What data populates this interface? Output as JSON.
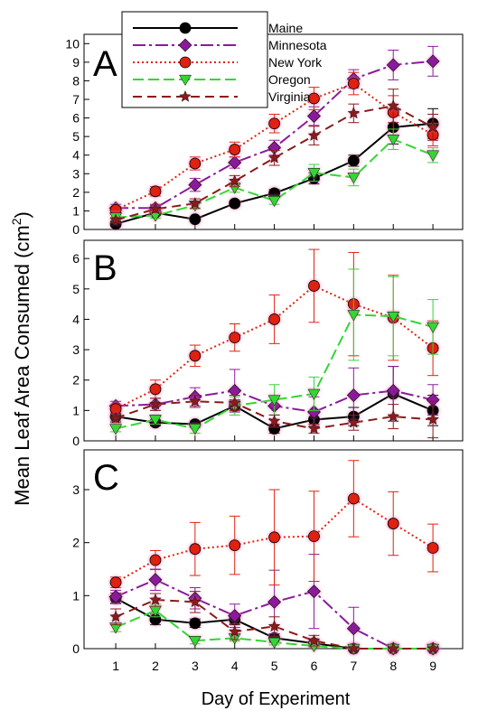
{
  "chart_data": {
    "type": "line",
    "xlabel": "Day of Experiment",
    "ylabel_main": "Mean Leaf Area Consumed (cm",
    "ylabel_sup": "2",
    "ylabel_close": ")",
    "x": [
      1,
      2,
      3,
      4,
      5,
      6,
      7,
      8,
      9
    ],
    "legend": {
      "placement": "top-left",
      "entries": [
        "Maine",
        "Minnesota",
        "New York",
        "Oregon",
        "Virginia"
      ]
    },
    "series_styles": [
      {
        "color": "#000000",
        "dash": "",
        "marker": "circle"
      },
      {
        "color": "#8b1a9b",
        "dash": "14,4,3,4",
        "marker": "diamond"
      },
      {
        "color": "#e02010",
        "dash": "2,3",
        "marker": "circle"
      },
      {
        "color": "#33d633",
        "dash": "12,5",
        "marker": "triangle-down"
      },
      {
        "color": "#8b1a1a",
        "dash": "10,6",
        "marker": "star"
      }
    ],
    "marker_color": "#e02010",
    "panels": [
      {
        "label": "A",
        "ylim": [
          0,
          10.5
        ],
        "yticks": [
          0,
          1,
          2,
          3,
          4,
          5,
          6,
          7,
          8,
          9,
          10
        ],
        "series": [
          {
            "name": "Maine",
            "values": [
              0.3,
              0.9,
              0.55,
              1.4,
              1.95,
              2.75,
              3.7,
              5.5,
              5.7
            ],
            "errors": [
              0.15,
              0.15,
              0.1,
              0.15,
              0.2,
              0.3,
              0.3,
              0.9,
              0.8
            ]
          },
          {
            "name": "Minnesota",
            "values": [
              1.15,
              1.15,
              2.4,
              3.6,
              4.4,
              6.1,
              8.1,
              8.85,
              9.05
            ],
            "errors": [
              0.2,
              0.2,
              0.35,
              0.3,
              0.4,
              0.5,
              0.5,
              0.8,
              0.8
            ]
          },
          {
            "name": "New York",
            "values": [
              1.05,
              2.05,
              3.55,
              4.3,
              5.7,
              7.05,
              7.85,
              6.3,
              5.1
            ],
            "errors": [
              0.15,
              0.25,
              0.35,
              0.4,
              0.5,
              0.6,
              0.6,
              0.9,
              0.6
            ]
          },
          {
            "name": "Oregon",
            "values": [
              0.65,
              0.75,
              1.3,
              2.25,
              1.55,
              3.05,
              2.8,
              4.85,
              4.0
            ],
            "errors": [
              0.15,
              0.15,
              0.2,
              0.25,
              0.2,
              0.45,
              0.45,
              0.55,
              0.4
            ]
          },
          {
            "name": "Virginia",
            "values": [
              0.5,
              1.1,
              1.4,
              2.6,
              3.85,
              5.05,
              6.25,
              6.65,
              5.5
            ],
            "errors": [
              0.15,
              0.2,
              0.25,
              0.3,
              0.4,
              0.5,
              0.5,
              0.9,
              0.7
            ]
          }
        ]
      },
      {
        "label": "B",
        "ylim": [
          0,
          6.6
        ],
        "yticks": [
          0,
          1,
          2,
          3,
          4,
          5,
          6
        ],
        "series": [
          {
            "name": "Maine",
            "values": [
              0.8,
              0.6,
              0.55,
              1.15,
              0.4,
              0.7,
              0.8,
              1.55,
              1.0
            ],
            "errors": [
              0.15,
              0.1,
              0.1,
              0.2,
              0.15,
              0.2,
              0.3,
              0.9,
              0.5
            ]
          },
          {
            "name": "Minnesota",
            "values": [
              1.15,
              1.2,
              1.45,
              1.65,
              1.15,
              0.95,
              1.5,
              1.65,
              1.35
            ],
            "errors": [
              0.15,
              0.2,
              0.3,
              0.7,
              0.3,
              0.5,
              0.9,
              0.8,
              0.5
            ]
          },
          {
            "name": "New York",
            "values": [
              1.05,
              1.7,
              2.8,
              3.4,
              4.0,
              5.1,
              4.5,
              4.05,
              3.05
            ],
            "errors": [
              0.15,
              0.3,
              0.35,
              0.45,
              0.8,
              1.2,
              1.7,
              1.4,
              0.9
            ]
          },
          {
            "name": "Oregon",
            "values": [
              0.4,
              0.7,
              0.4,
              1.15,
              1.35,
              1.55,
              4.15,
              4.1,
              3.75
            ],
            "errors": [
              0.1,
              0.15,
              0.15,
              0.3,
              0.5,
              0.55,
              1.5,
              1.3,
              0.9
            ]
          },
          {
            "name": "Virginia",
            "values": [
              0.75,
              1.2,
              1.3,
              1.25,
              0.65,
              0.4,
              0.6,
              0.8,
              0.7
            ],
            "errors": [
              0.15,
              0.2,
              0.2,
              0.25,
              0.2,
              0.15,
              0.25,
              0.4,
              0.6
            ]
          }
        ]
      },
      {
        "label": "C",
        "ylim": [
          0,
          3.75
        ],
        "yticks": [
          0,
          1,
          2,
          3
        ],
        "series": [
          {
            "name": "Maine",
            "values": [
              0.95,
              0.55,
              0.48,
              0.55,
              0.2,
              0.1,
              0.0,
              0.0,
              0.0
            ],
            "errors": [
              0.1,
              0.1,
              0.08,
              0.1,
              0.08,
              0.05,
              0.02,
              0.0,
              0.0
            ]
          },
          {
            "name": "Minnesota",
            "values": [
              0.98,
              1.3,
              0.95,
              0.62,
              0.88,
              1.08,
              0.38,
              0.0,
              0.0
            ],
            "errors": [
              0.12,
              0.2,
              0.2,
              0.22,
              0.6,
              0.7,
              0.4,
              0.0,
              0.0
            ]
          },
          {
            "name": "New York",
            "values": [
              1.25,
              1.67,
              1.88,
              1.95,
              2.1,
              2.12,
              2.83,
              2.36,
              1.9
            ],
            "errors": [
              0.1,
              0.18,
              0.5,
              0.55,
              0.9,
              0.85,
              0.72,
              0.6,
              0.45
            ]
          },
          {
            "name": "Oregon",
            "values": [
              0.4,
              0.72,
              0.15,
              0.2,
              0.12,
              0.05,
              0.0,
              0.0,
              0.0
            ],
            "errors": [
              0.08,
              0.12,
              0.06,
              0.06,
              0.05,
              0.03,
              0.0,
              0.0,
              0.0
            ]
          },
          {
            "name": "Virginia",
            "values": [
              0.6,
              0.92,
              0.88,
              0.32,
              0.42,
              0.15,
              0.0,
              0.0,
              0.0
            ],
            "errors": [
              0.15,
              0.12,
              0.2,
              0.15,
              0.18,
              0.1,
              0.0,
              0.0,
              0.0
            ]
          }
        ]
      }
    ]
  }
}
